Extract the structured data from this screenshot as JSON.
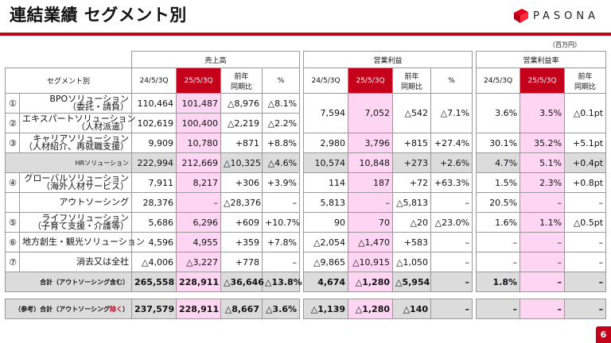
{
  "title": "連結業績 セグメント別",
  "logo": "PASONA",
  "unit": "（百万円）",
  "page_number": "6",
  "colors": {
    "accent": "#c4001a",
    "highlight": "#ffd5f4",
    "shaded": "#dcdcdc"
  },
  "groups": {
    "sales": "売上高",
    "op": "営業利益",
    "margin": "営業利益率"
  },
  "headers": {
    "segment": "セグメント別",
    "prev": "24/5/3Q",
    "curr": "25/5/3Q",
    "yoy_line1": "前年",
    "yoy_line2": "同期比",
    "pct": "%"
  },
  "rows": {
    "bpo": {
      "num": "①",
      "name1": "BPOソリューション",
      "name2": "（委託・請負）",
      "s_prev": "110,464",
      "s_curr": "101,487",
      "s_diff": "△8,976",
      "s_pct": "△8.1%"
    },
    "exp": {
      "num": "②",
      "name1": "エキスパートソリューション",
      "name2": "（人材派遣）",
      "s_prev": "102,619",
      "s_curr": "100,400",
      "s_diff": "△2,219",
      "s_pct": "△2.2%"
    },
    "bpo_exp": {
      "o_prev": "7,594",
      "o_curr": "7,052",
      "o_diff": "△542",
      "o_pct": "△7.1%",
      "m_prev": "3.6%",
      "m_curr": "3.5%",
      "m_diff": "△0.1pt"
    },
    "car": {
      "num": "③",
      "name1": "キャリアソリューション",
      "name2": "（人材紹介、再就職支援）",
      "s_prev": "9,909",
      "s_curr": "10,780",
      "s_diff": "+871",
      "s_pct": "+8.8%",
      "o_prev": "2,980",
      "o_curr": "3,796",
      "o_diff": "+815",
      "o_pct": "+27.4%",
      "m_prev": "30.1%",
      "m_curr": "35.2%",
      "m_diff": "+5.1pt"
    },
    "hr": {
      "name": "HRソリューション",
      "s_prev": "222,994",
      "s_curr": "212,669",
      "s_diff": "△10,325",
      "s_pct": "△4.6%",
      "o_prev": "10,574",
      "o_curr": "10,848",
      "o_diff": "+273",
      "o_pct": "+2.6%",
      "m_prev": "4.7%",
      "m_curr": "5.1%",
      "m_diff": "+0.4pt"
    },
    "glob": {
      "num": "④",
      "name1": "グローバルソリューション",
      "name2": "（海外人材サービス）",
      "s_prev": "7,911",
      "s_curr": "8,217",
      "s_diff": "+306",
      "s_pct": "+3.9%",
      "o_prev": "114",
      "o_curr": "187",
      "o_diff": "+72",
      "o_pct": "+63.3%",
      "m_prev": "1.5%",
      "m_curr": "2.3%",
      "m_diff": "+0.8pt"
    },
    "out": {
      "name": "アウトソーシング",
      "s_prev": "28,376",
      "s_curr": "–",
      "s_diff": "△28,376",
      "s_pct": "–",
      "o_prev": "5,813",
      "o_curr": "–",
      "o_diff": "△5,813",
      "o_pct": "–",
      "m_prev": "20.5%",
      "m_curr": "–",
      "m_diff": "–"
    },
    "life": {
      "num": "⑤",
      "name1": "ライフソリューション",
      "name2": "（子育て支援・介護等）",
      "s_prev": "5,686",
      "s_curr": "6,296",
      "s_diff": "+609",
      "s_pct": "+10.7%",
      "o_prev": "90",
      "o_curr": "70",
      "o_diff": "△20",
      "o_pct": "△23.0%",
      "m_prev": "1.6%",
      "m_curr": "1.1%",
      "m_diff": "△0.5pt"
    },
    "local": {
      "num": "⑥",
      "name1": "地方創生・観光ソリューション",
      "s_prev": "4,596",
      "s_curr": "4,955",
      "s_diff": "+359",
      "s_pct": "+7.8%",
      "o_prev": "△2,054",
      "o_curr": "△1,470",
      "o_diff": "+583",
      "o_pct": "–",
      "m_prev": "–",
      "m_curr": "–",
      "m_diff": "–"
    },
    "elim": {
      "num": "⑦",
      "name1": "消去又は全社",
      "s_prev": "△4,006",
      "s_curr": "△3,227",
      "s_diff": "+778",
      "s_pct": "–",
      "o_prev": "△9,865",
      "o_curr": "△10,915",
      "o_diff": "△1,050",
      "o_pct": "–",
      "m_prev": "–",
      "m_curr": "–",
      "m_diff": "–"
    },
    "total": {
      "name": "合計（アウトソーシング含む）",
      "s_prev": "265,558",
      "s_curr": "228,911",
      "s_diff": "△36,646",
      "s_pct": "△13.8%",
      "o_prev": "4,674",
      "o_curr": "△1,280",
      "o_diff": "△5,954",
      "o_pct": "–",
      "m_prev": "1.8%",
      "m_curr": "–",
      "m_diff": "–"
    },
    "ref": {
      "name_a": "（参考）合計（アウトソーシング",
      "name_b": "除く",
      "name_c": "）",
      "s_prev": "237,579",
      "s_curr": "228,911",
      "s_diff": "△8,667",
      "s_pct": "△3.6%",
      "o_prev": "△1,139",
      "o_curr": "△1,280",
      "o_diff": "△140",
      "o_pct": "–",
      "m_prev": "–",
      "m_curr": "–",
      "m_diff": "–"
    }
  }
}
